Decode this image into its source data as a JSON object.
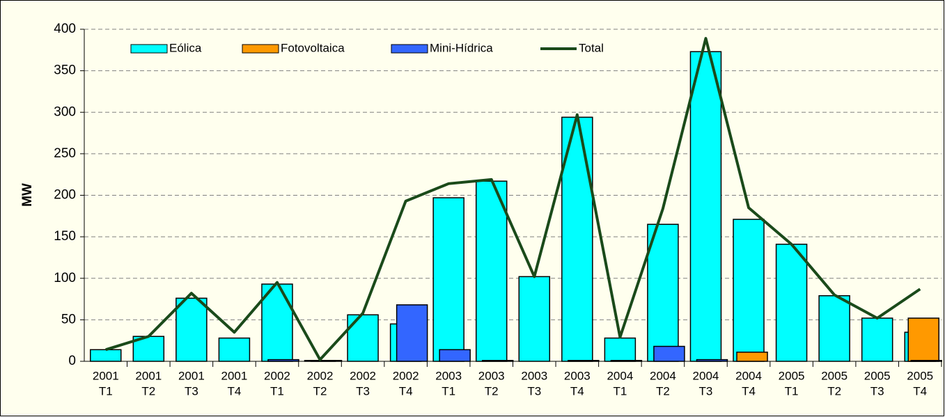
{
  "chart_data": {
    "type": "bar_line",
    "y_label": "MW",
    "categories": [
      [
        "2001",
        "T1"
      ],
      [
        "2001",
        "T2"
      ],
      [
        "2001",
        "T3"
      ],
      [
        "2001",
        "T4"
      ],
      [
        "2002",
        "T1"
      ],
      [
        "2002",
        "T2"
      ],
      [
        "2002",
        "T3"
      ],
      [
        "2002",
        "T4"
      ],
      [
        "2003",
        "T1"
      ],
      [
        "2003",
        "T2"
      ],
      [
        "2003",
        "T3"
      ],
      [
        "2003",
        "T4"
      ],
      [
        "2004",
        "T1"
      ],
      [
        "2004",
        "T2"
      ],
      [
        "2004",
        "T3"
      ],
      [
        "2004",
        "T4"
      ],
      [
        "2005",
        "T1"
      ],
      [
        "2005",
        "T2"
      ],
      [
        "2005",
        "T3"
      ],
      [
        "2005",
        "T4"
      ]
    ],
    "series": [
      {
        "name": "Eólica",
        "type": "bar",
        "color": "#00ffff",
        "values": [
          14,
          30,
          76,
          28,
          93,
          1,
          56,
          45,
          197,
          217,
          102,
          294,
          28,
          165,
          373,
          171,
          141,
          79,
          52,
          35
        ]
      },
      {
        "name": "Fotovoltaica",
        "type": "bar",
        "color": "#ff9900",
        "values": [
          0,
          0,
          0,
          0,
          0,
          0,
          0,
          0,
          0,
          0,
          0,
          0,
          0,
          0,
          0,
          11,
          0,
          0,
          0,
          52
        ]
      },
      {
        "name": "Mini-Hídrica",
        "type": "bar",
        "color": "#3366ff",
        "values": [
          0,
          0,
          0,
          0,
          2,
          1,
          0,
          68,
          14,
          1,
          0,
          1,
          1,
          18,
          2,
          0,
          0,
          0,
          0,
          1
        ]
      },
      {
        "name": "Total",
        "type": "line",
        "color": "#1a4a1a",
        "values": [
          14,
          30,
          82,
          35,
          95,
          2,
          58,
          193,
          214,
          219,
          102,
          297,
          29,
          184,
          389,
          185,
          141,
          80,
          52,
          87
        ]
      }
    ],
    "ylim": [
      0,
      400
    ],
    "yticks": [
      0,
      50,
      100,
      150,
      200,
      250,
      300,
      350,
      400
    ],
    "grid": true,
    "legend": "top"
  }
}
